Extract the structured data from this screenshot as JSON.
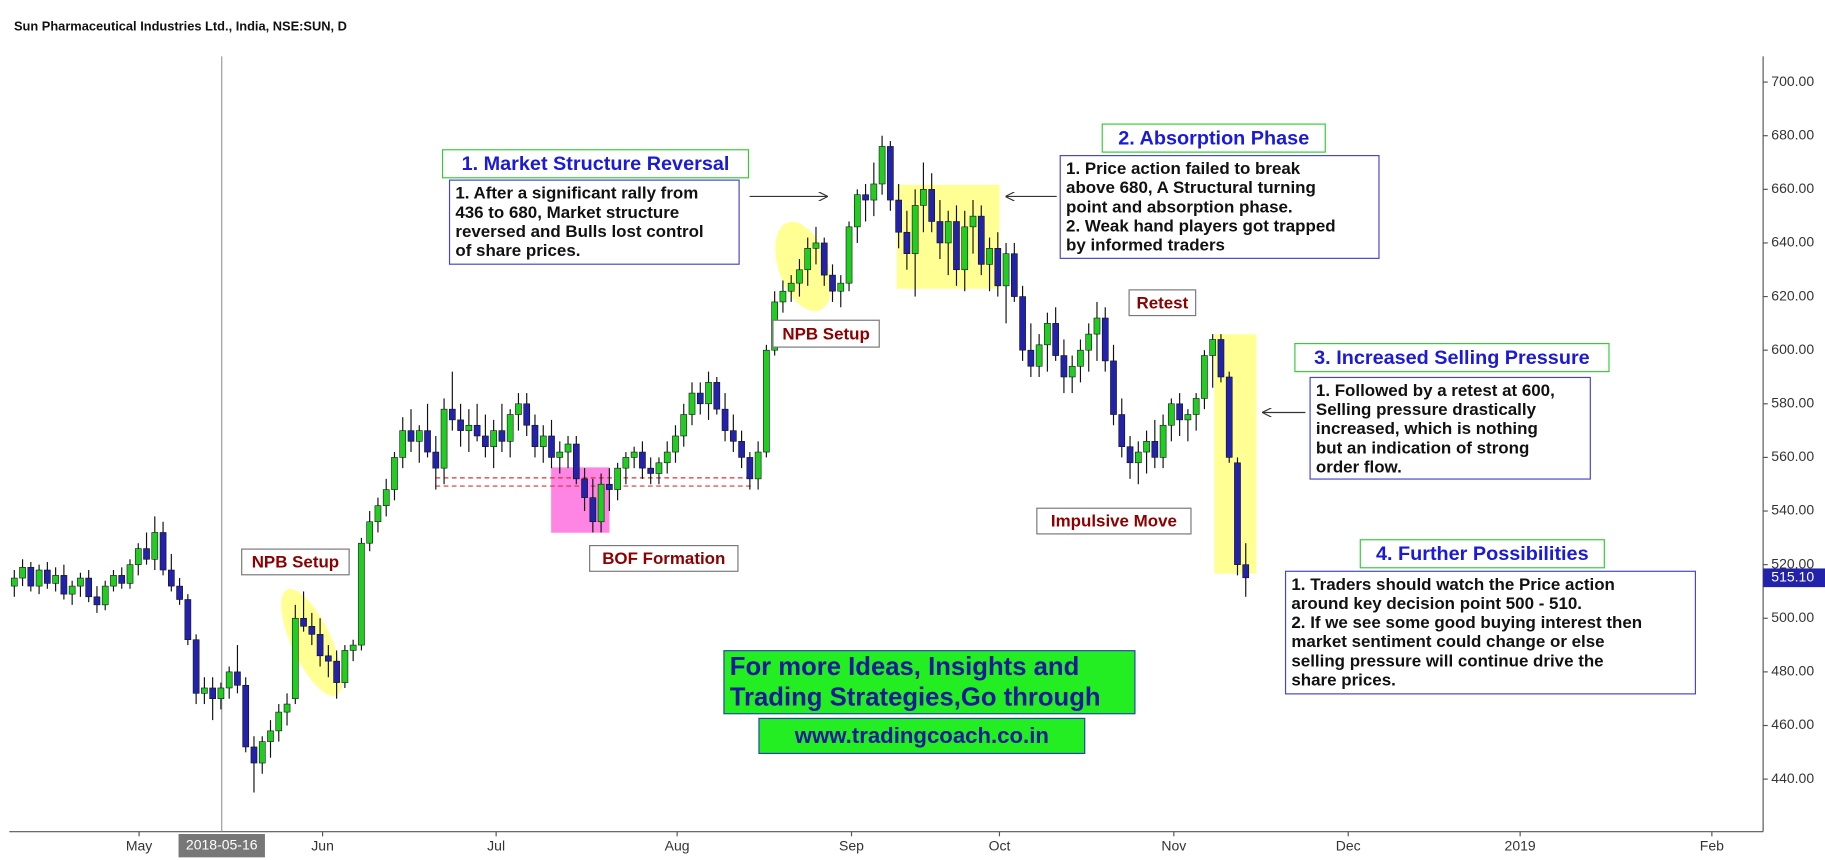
{
  "chart_data": {
    "type": "candlestick",
    "title": "Sun Pharmaceutical Industries Ltd., India, NSE:SUN, D",
    "up_color": "#22cc22",
    "down_color": "#2222aa",
    "xlim": [
      -0.6,
      211.6
    ],
    "ylim": [
      420.4,
      709.6
    ],
    "xticks": [
      {
        "value": 15.1,
        "label": "May"
      },
      {
        "value": 37.3,
        "label": "Jun"
      },
      {
        "value": 58.3,
        "label": "Jul"
      },
      {
        "value": 80.2,
        "label": "Aug"
      },
      {
        "value": 101.3,
        "label": "Sep"
      },
      {
        "value": 119.2,
        "label": "Oct"
      },
      {
        "value": 140.3,
        "label": "Nov"
      },
      {
        "value": 161.4,
        "label": "Dec"
      },
      {
        "value": 182.2,
        "label": "2019"
      },
      {
        "value": 205.4,
        "label": "Feb"
      }
    ],
    "yticks": [
      {
        "value": 440,
        "label": "440.00"
      },
      {
        "value": 460,
        "label": "460.00"
      },
      {
        "value": 480,
        "label": "480.00"
      },
      {
        "value": 500,
        "label": "500.00"
      },
      {
        "value": 520,
        "label": "520.00"
      },
      {
        "value": 540,
        "label": "540.00"
      },
      {
        "value": 560,
        "label": "560.00"
      },
      {
        "value": 580,
        "label": "580.00"
      },
      {
        "value": 600,
        "label": "600.00"
      },
      {
        "value": 620,
        "label": "620.00"
      },
      {
        "value": 640,
        "label": "640.00"
      },
      {
        "value": 660,
        "label": "660.00"
      },
      {
        "value": 680,
        "label": "680.00"
      },
      {
        "value": 700,
        "label": "700.00"
      }
    ],
    "crosshair": {
      "x": 25.1,
      "label": "2018-05-16"
    },
    "last_price": {
      "value": 515.1,
      "label": "515.10"
    },
    "ohlc": [
      [
        512,
        518,
        508,
        515
      ],
      [
        515,
        522,
        512,
        519
      ],
      [
        519,
        521,
        510,
        512
      ],
      [
        512,
        520,
        509,
        518
      ],
      [
        518,
        521,
        511,
        513
      ],
      [
        513,
        519,
        510,
        516
      ],
      [
        516,
        520,
        507,
        509
      ],
      [
        509,
        514,
        505,
        512
      ],
      [
        512,
        517,
        508,
        515
      ],
      [
        515,
        518,
        506,
        508
      ],
      [
        508,
        512,
        502,
        505
      ],
      [
        505,
        514,
        503,
        512
      ],
      [
        512,
        518,
        510,
        516
      ],
      [
        516,
        519,
        511,
        513
      ],
      [
        513,
        522,
        511,
        520
      ],
      [
        520,
        528,
        516,
        526
      ],
      [
        526,
        532,
        520,
        522
      ],
      [
        522,
        538,
        518,
        532
      ],
      [
        532,
        536,
        516,
        518
      ],
      [
        518,
        524,
        510,
        512
      ],
      [
        512,
        515,
        505,
        507
      ],
      [
        507,
        509,
        490,
        492
      ],
      [
        492,
        494,
        468,
        472
      ],
      [
        472,
        478,
        468,
        474
      ],
      [
        474,
        478,
        462,
        470
      ],
      [
        470,
        476,
        466,
        474
      ],
      [
        474,
        482,
        470,
        480
      ],
      [
        480,
        490,
        472,
        475
      ],
      [
        475,
        478,
        450,
        452
      ],
      [
        452,
        456,
        435,
        446
      ],
      [
        446,
        456,
        442,
        454
      ],
      [
        454,
        462,
        448,
        458
      ],
      [
        458,
        468,
        454,
        465
      ],
      [
        465,
        472,
        460,
        468
      ],
      [
        470,
        505,
        468,
        500
      ],
      [
        500,
        510,
        495,
        497
      ],
      [
        497,
        502,
        490,
        494
      ],
      [
        494,
        500,
        482,
        486
      ],
      [
        486,
        490,
        478,
        484
      ],
      [
        484,
        488,
        470,
        476
      ],
      [
        476,
        490,
        474,
        488
      ],
      [
        488,
        492,
        484,
        490
      ],
      [
        490,
        530,
        488,
        528
      ],
      [
        528,
        540,
        525,
        536
      ],
      [
        536,
        545,
        532,
        542
      ],
      [
        542,
        552,
        538,
        548
      ],
      [
        548,
        562,
        544,
        560
      ],
      [
        560,
        575,
        556,
        570
      ],
      [
        570,
        578,
        562,
        566
      ],
      [
        566,
        572,
        558,
        570
      ],
      [
        570,
        580,
        560,
        562
      ],
      [
        562,
        568,
        548,
        556
      ],
      [
        556,
        582,
        550,
        578
      ],
      [
        578,
        592,
        570,
        574
      ],
      [
        574,
        580,
        564,
        570
      ],
      [
        570,
        578,
        562,
        572
      ],
      [
        572,
        580,
        566,
        568
      ],
      [
        568,
        576,
        560,
        564
      ],
      [
        564,
        574,
        556,
        570
      ],
      [
        570,
        580,
        562,
        566
      ],
      [
        566,
        578,
        560,
        576
      ],
      [
        576,
        584,
        570,
        580
      ],
      [
        580,
        584,
        568,
        572
      ],
      [
        572,
        576,
        560,
        564
      ],
      [
        564,
        572,
        558,
        568
      ],
      [
        568,
        574,
        556,
        560
      ],
      [
        560,
        566,
        554,
        562
      ],
      [
        562,
        568,
        556,
        565
      ],
      [
        565,
        568,
        550,
        552
      ],
      [
        552,
        556,
        540,
        545
      ],
      [
        545,
        552,
        532,
        536
      ],
      [
        536,
        554,
        532,
        550
      ],
      [
        550,
        556,
        540,
        548
      ],
      [
        548,
        558,
        544,
        556
      ],
      [
        556,
        562,
        550,
        560
      ],
      [
        560,
        564,
        556,
        562
      ],
      [
        562,
        566,
        552,
        556
      ],
      [
        556,
        560,
        550,
        554
      ],
      [
        554,
        560,
        550,
        558
      ],
      [
        558,
        566,
        554,
        562
      ],
      [
        562,
        572,
        558,
        568
      ],
      [
        568,
        580,
        564,
        576
      ],
      [
        576,
        588,
        572,
        584
      ],
      [
        584,
        588,
        576,
        580
      ],
      [
        580,
        592,
        574,
        588
      ],
      [
        588,
        590,
        576,
        578
      ],
      [
        578,
        584,
        566,
        570
      ],
      [
        570,
        576,
        562,
        566
      ],
      [
        566,
        570,
        556,
        560
      ],
      [
        560,
        562,
        548,
        552
      ],
      [
        552,
        566,
        548,
        562
      ],
      [
        562,
        602,
        560,
        600
      ],
      [
        600,
        622,
        598,
        618
      ],
      [
        618,
        626,
        614,
        622
      ],
      [
        622,
        628,
        618,
        625
      ],
      [
        625,
        634,
        620,
        630
      ],
      [
        630,
        642,
        624,
        638
      ],
      [
        638,
        646,
        632,
        640
      ],
      [
        640,
        642,
        624,
        628
      ],
      [
        628,
        632,
        618,
        622
      ],
      [
        622,
        628,
        616,
        625
      ],
      [
        625,
        648,
        622,
        646
      ],
      [
        646,
        660,
        640,
        658
      ],
      [
        658,
        662,
        648,
        656
      ],
      [
        656,
        670,
        650,
        662
      ],
      [
        662,
        680,
        658,
        676
      ],
      [
        676,
        678,
        652,
        656
      ],
      [
        656,
        662,
        638,
        644
      ],
      [
        644,
        652,
        630,
        636
      ],
      [
        636,
        660,
        620,
        654
      ],
      [
        654,
        670,
        644,
        660
      ],
      [
        660,
        666,
        644,
        648
      ],
      [
        648,
        656,
        634,
        640
      ],
      [
        640,
        652,
        628,
        648
      ],
      [
        648,
        654,
        624,
        630
      ],
      [
        630,
        652,
        622,
        646
      ],
      [
        646,
        656,
        636,
        650
      ],
      [
        650,
        654,
        628,
        632
      ],
      [
        632,
        642,
        622,
        638
      ],
      [
        638,
        644,
        620,
        624
      ],
      [
        624,
        640,
        610,
        636
      ],
      [
        636,
        640,
        618,
        620
      ],
      [
        620,
        624,
        596,
        600
      ],
      [
        600,
        610,
        590,
        594
      ],
      [
        594,
        606,
        590,
        602
      ],
      [
        602,
        614,
        592,
        610
      ],
      [
        610,
        616,
        596,
        598
      ],
      [
        598,
        604,
        584,
        590
      ],
      [
        590,
        598,
        584,
        594
      ],
      [
        594,
        604,
        588,
        600
      ],
      [
        600,
        610,
        592,
        606
      ],
      [
        606,
        618,
        596,
        612
      ],
      [
        612,
        616,
        592,
        596
      ],
      [
        596,
        602,
        572,
        576
      ],
      [
        576,
        582,
        560,
        564
      ],
      [
        564,
        568,
        552,
        558
      ],
      [
        558,
        566,
        550,
        562
      ],
      [
        562,
        570,
        554,
        566
      ],
      [
        566,
        574,
        556,
        560
      ],
      [
        560,
        576,
        556,
        572
      ],
      [
        572,
        582,
        566,
        580
      ],
      [
        580,
        584,
        568,
        574
      ],
      [
        574,
        578,
        566,
        576
      ],
      [
        576,
        584,
        570,
        582
      ],
      [
        582,
        600,
        578,
        598
      ],
      [
        598,
        606,
        586,
        604
      ],
      [
        604,
        606,
        588,
        590
      ],
      [
        590,
        592,
        558,
        560
      ],
      [
        558,
        560,
        516,
        520
      ],
      [
        520,
        528,
        508,
        515.1
      ]
    ],
    "annotations": {
      "reversal_title": "1. Market Structure Reversal",
      "reversal_text": [
        "1. After a significant rally from",
        "436 to 680, Market structure",
        "reversed and Bulls lost control",
        "of share prices."
      ],
      "absorption_title": "2. Absorption Phase",
      "absorption_text": [
        "1. Price action failed to break",
        "above 680, A Structural turning",
        "point and absorption phase.",
        "2. Weak hand players got trapped",
        "by informed traders"
      ],
      "npb_setup_1": "NPB Setup",
      "npb_setup_2": "NPB Setup",
      "bof": "BOF Formation",
      "retest": "Retest",
      "impulsive": "Impulsive Move",
      "selling_title": "3. Increased Selling Pressure",
      "selling_text": [
        "1. Followed by a retest at 600,",
        "Selling pressure drastically",
        "increased, which is nothing",
        "but an indication of strong",
        "order flow."
      ],
      "possibilities_title": "4. Further Possibilities",
      "possibilities_text": [
        "1. Traders should watch the Price action",
        "around key decision point 500 - 510.",
        "2. If we see some good buying interest then",
        "market sentiment could change or else",
        "selling pressure will continue drive the",
        "share prices."
      ],
      "promo_text": [
        "For more Ideas, Insights and",
        "Trading Strategies,Go through"
      ],
      "website": "www.tradingcoach.co.in"
    }
  }
}
